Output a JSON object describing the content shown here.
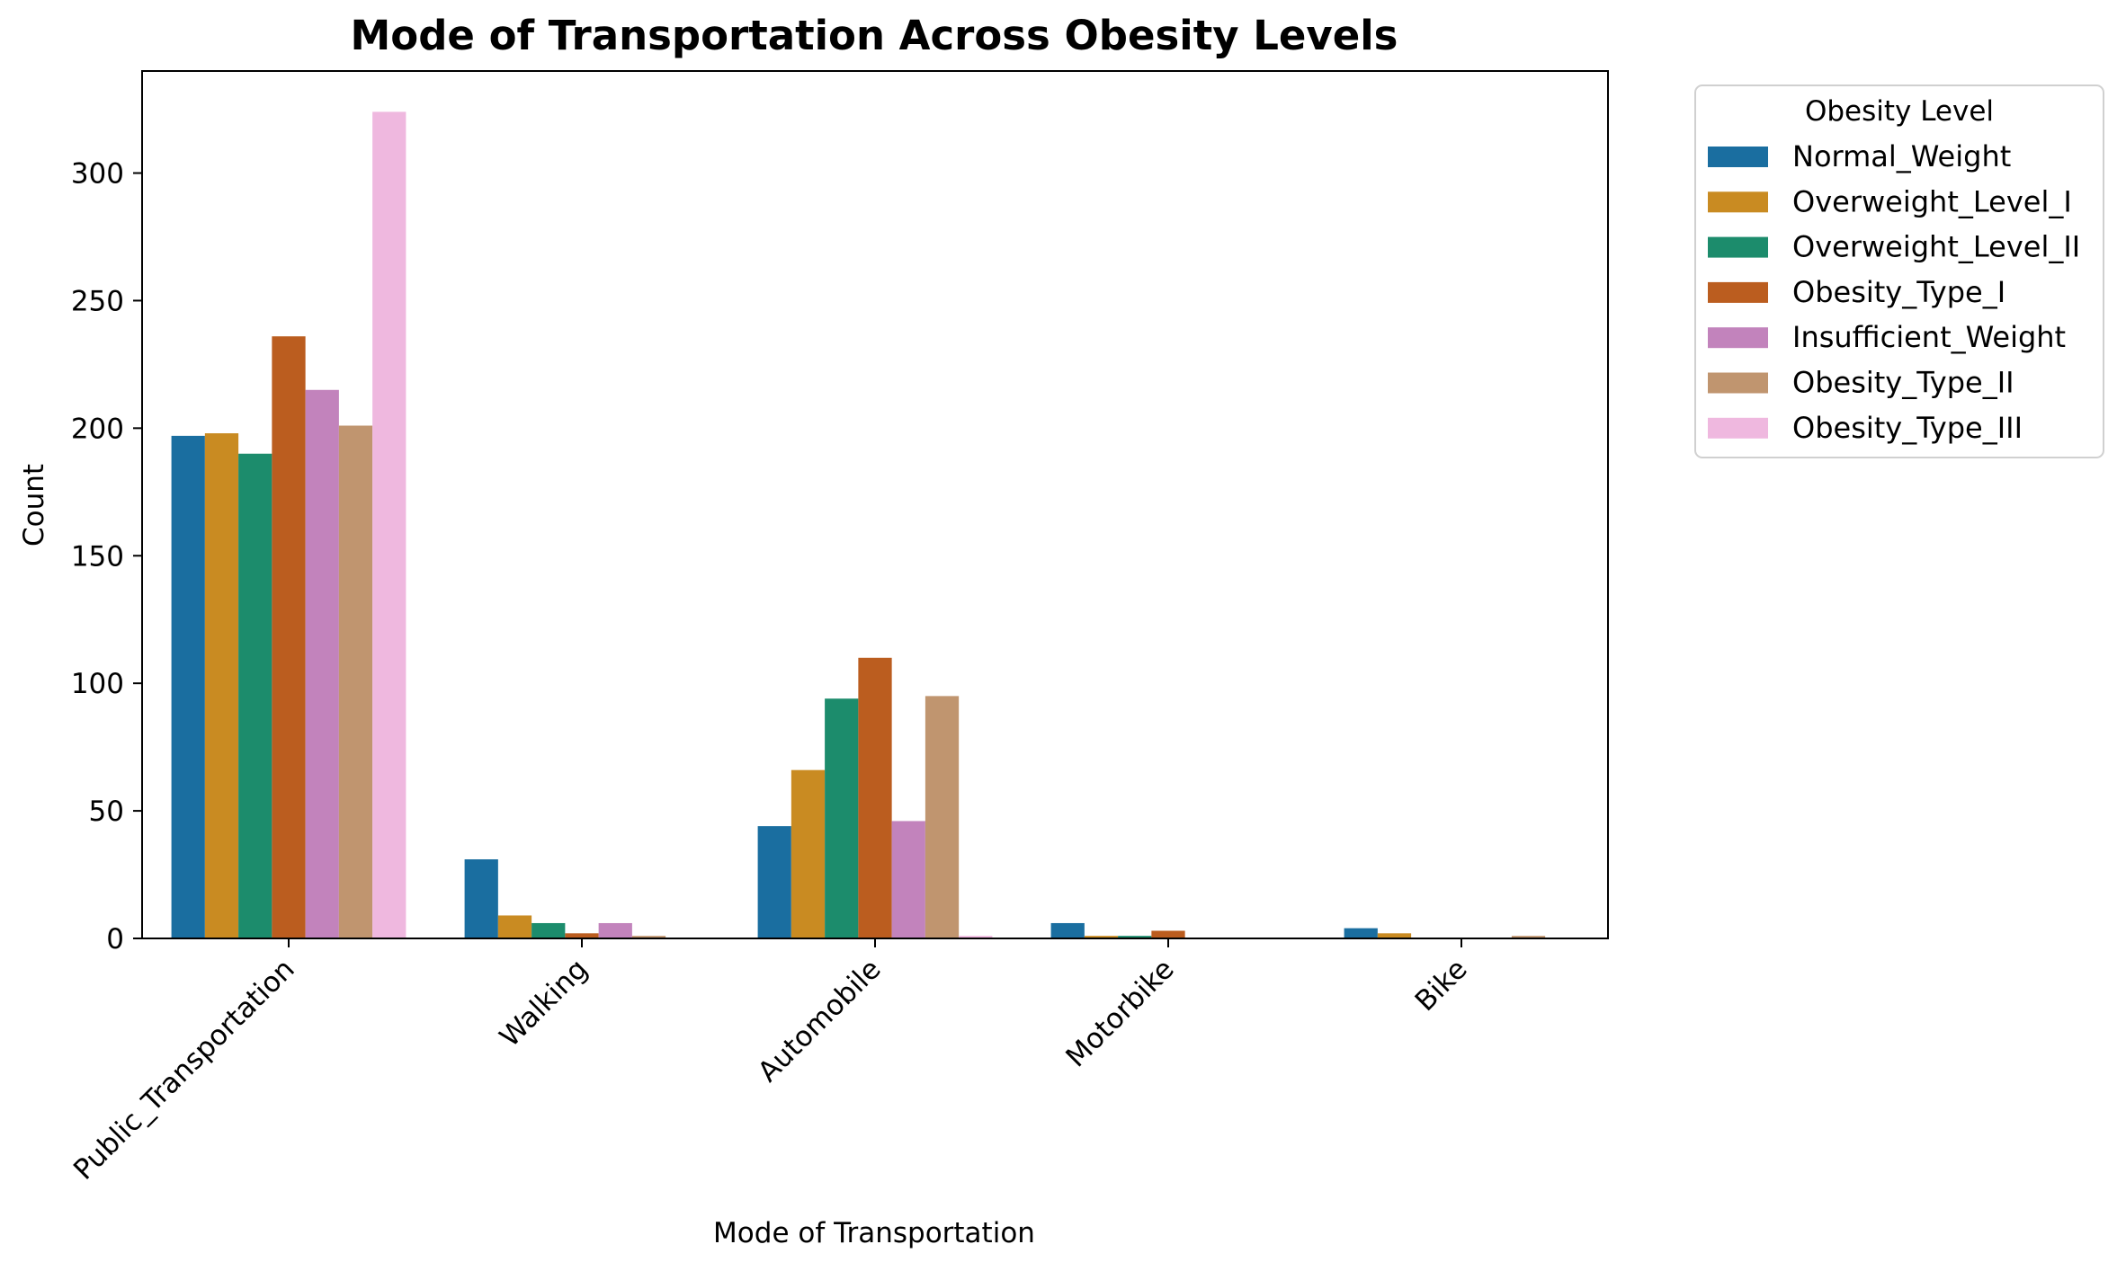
{
  "chart_data": {
    "type": "bar",
    "title": "Mode of Transportation Across Obesity Levels",
    "xlabel": "Mode of Transportation",
    "ylabel": "Count",
    "ylim": [
      0,
      340
    ],
    "yticks": [
      0,
      50,
      100,
      150,
      200,
      250,
      300
    ],
    "categories": [
      "Public_Transportation",
      "Walking",
      "Automobile",
      "Motorbike",
      "Bike"
    ],
    "legend": {
      "title": "Obesity Level",
      "placement": "outside-top-right"
    },
    "grid": false,
    "series": [
      {
        "name": "Normal_Weight",
        "color": "#1a6ea0",
        "values": [
          197,
          31,
          44,
          6,
          4
        ]
      },
      {
        "name": "Overweight_Level_I",
        "color": "#c98b22",
        "values": [
          198,
          9,
          66,
          1,
          2
        ]
      },
      {
        "name": "Overweight_Level_II",
        "color": "#1c8c6c",
        "values": [
          190,
          6,
          94,
          1,
          0
        ]
      },
      {
        "name": "Obesity_Type_I",
        "color": "#bb5d1f",
        "values": [
          236,
          2,
          110,
          3,
          0
        ]
      },
      {
        "name": "Insufficient_Weight",
        "color": "#c283bc",
        "values": [
          215,
          6,
          46,
          0,
          0
        ]
      },
      {
        "name": "Obesity_Type_II",
        "color": "#c0956f",
        "values": [
          201,
          1,
          95,
          0,
          1
        ]
      },
      {
        "name": "Obesity_Type_III",
        "color": "#efb8df",
        "values": [
          324,
          0,
          1,
          0,
          0
        ]
      }
    ]
  }
}
